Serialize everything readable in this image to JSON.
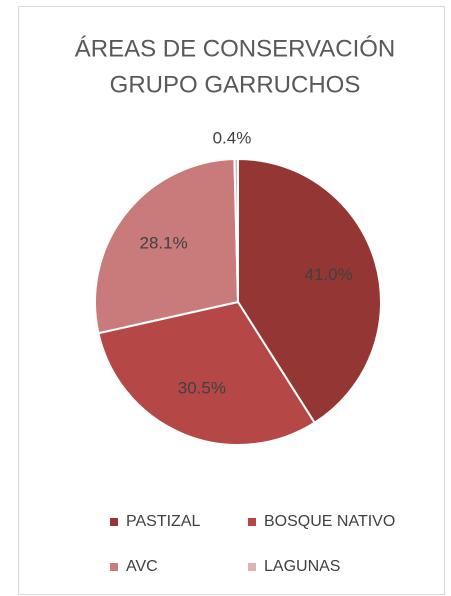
{
  "chart_data": {
    "type": "pie",
    "title": [
      "ÁREAS DE CONSERVACIÓN",
      "GRUPO GARRUCHOS"
    ],
    "categories": [
      "PASTIZAL",
      "BOSQUE NATIVO",
      "AVC",
      "LAGUNAS"
    ],
    "values": [
      41.0,
      30.5,
      28.1,
      0.4
    ],
    "value_labels": [
      "41.0%",
      "30.5%",
      "28.1%",
      "0.4%"
    ],
    "colors": [
      "#943634",
      "#b64747",
      "#c97b7b",
      "#dfb3b3"
    ],
    "legend": "bottom"
  }
}
